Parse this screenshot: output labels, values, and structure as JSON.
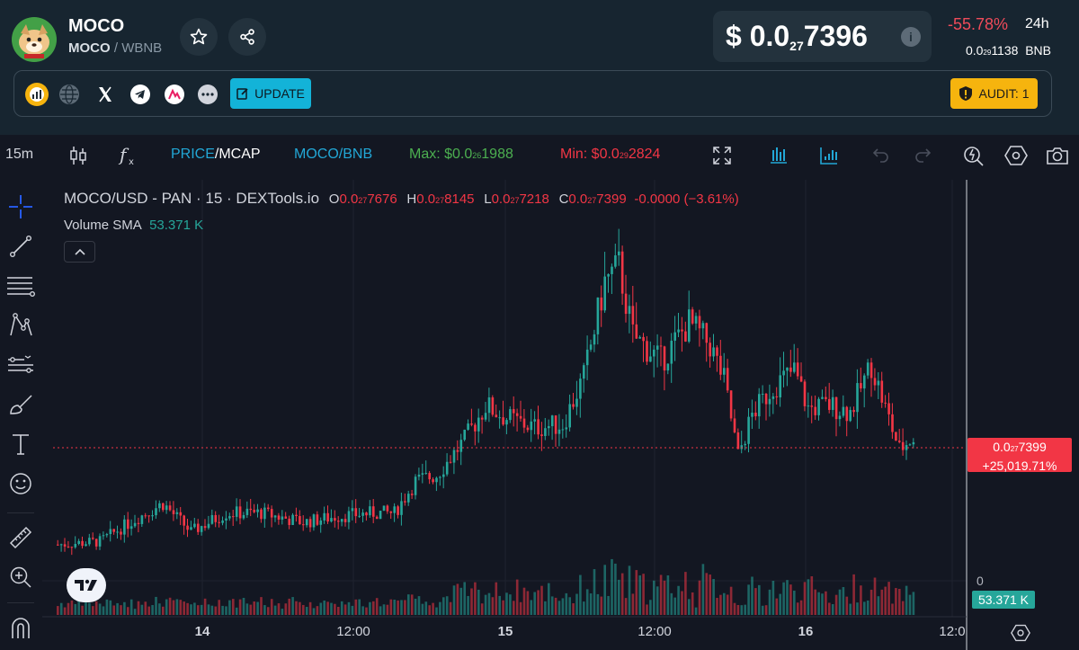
{
  "token": {
    "name": "MOCO",
    "pair_base": "MOCO",
    "pair_sep": "/",
    "pair_quote": "WBNB"
  },
  "price": {
    "currency": "$",
    "prefix": "0.0",
    "zeros": "27",
    "digits": "7396",
    "change": "-55.78%",
    "change_period": "24h",
    "bnb_prefix": "0.0",
    "bnb_zeros": "29",
    "bnb_digits": "1138",
    "bnb_unit": "BNB"
  },
  "links": {
    "update_label": "UPDATE",
    "audit_label": "AUDIT: 1"
  },
  "toolbar": {
    "interval": "15m",
    "price_label": "PRICE",
    "mcap_label": "/MCAP",
    "pair_label": "MOCO/BNB",
    "max_label": "Max: $0.0",
    "max_zeros": "26",
    "max_digits": "1988",
    "min_label": "Min: $0.0",
    "min_zeros": "29",
    "min_digits": "2824"
  },
  "legend": {
    "title": "MOCO/USD - PAN · 15 · DEXTools.io",
    "o_key": "O",
    "o_prefix": "0.0",
    "o_zeros": "27",
    "o_digits": "7676",
    "h_key": "H",
    "h_prefix": "0.0",
    "h_zeros": "27",
    "h_digits": "8145",
    "l_key": "L",
    "l_prefix": "0.0",
    "l_zeros": "27",
    "l_digits": "7218",
    "c_key": "C",
    "c_prefix": "0.0",
    "c_zeros": "27",
    "c_digits": "7399",
    "change": "-0.0000 (−3.61%)",
    "volume_label": "Volume SMA",
    "volume_value": "53.371 K"
  },
  "price_tag": {
    "prefix": "0.0",
    "zeros": "27",
    "digits": "7399",
    "pct": "+25,019.71%"
  },
  "volume_axis": {
    "zero": "0",
    "tag": "53.371 K"
  },
  "time_axis": {
    "ticks": [
      "14",
      "12:00",
      "15",
      "12:00",
      "16",
      "12:0"
    ]
  },
  "colors": {
    "up": "#26a69a",
    "down": "#f23645",
    "accent": "#13b3d8",
    "audit": "#f6b40e",
    "max": "#4caf50"
  },
  "chart_data": {
    "type": "candlestick",
    "title": "MOCO/USD - PAN · 15 · DEXTools.io",
    "x_ticks": [
      "14",
      "12:00",
      "15",
      "12:00",
      "16",
      "12:0"
    ],
    "keypoints": [
      [
        0,
        0.12
      ],
      [
        12,
        0.13
      ],
      [
        22,
        0.2
      ],
      [
        30,
        0.25
      ],
      [
        38,
        0.16
      ],
      [
        48,
        0.22
      ],
      [
        58,
        0.22
      ],
      [
        70,
        0.19
      ],
      [
        80,
        0.21
      ],
      [
        90,
        0.22
      ],
      [
        96,
        0.22
      ],
      [
        102,
        0.32
      ],
      [
        108,
        0.34
      ],
      [
        116,
        0.45
      ],
      [
        122,
        0.56
      ],
      [
        128,
        0.52
      ],
      [
        136,
        0.49
      ],
      [
        144,
        0.5
      ],
      [
        150,
        0.65
      ],
      [
        156,
        0.95
      ],
      [
        160,
        1.0
      ],
      [
        164,
        0.78
      ],
      [
        172,
        0.7
      ],
      [
        180,
        0.82
      ],
      [
        186,
        0.75
      ],
      [
        190,
        0.64
      ],
      [
        194,
        0.4
      ],
      [
        198,
        0.53
      ],
      [
        204,
        0.62
      ],
      [
        210,
        0.67
      ],
      [
        214,
        0.55
      ],
      [
        220,
        0.56
      ],
      [
        226,
        0.54
      ],
      [
        232,
        0.69
      ],
      [
        236,
        0.55
      ],
      [
        240,
        0.42
      ],
      [
        244,
        0.46
      ]
    ]
  }
}
